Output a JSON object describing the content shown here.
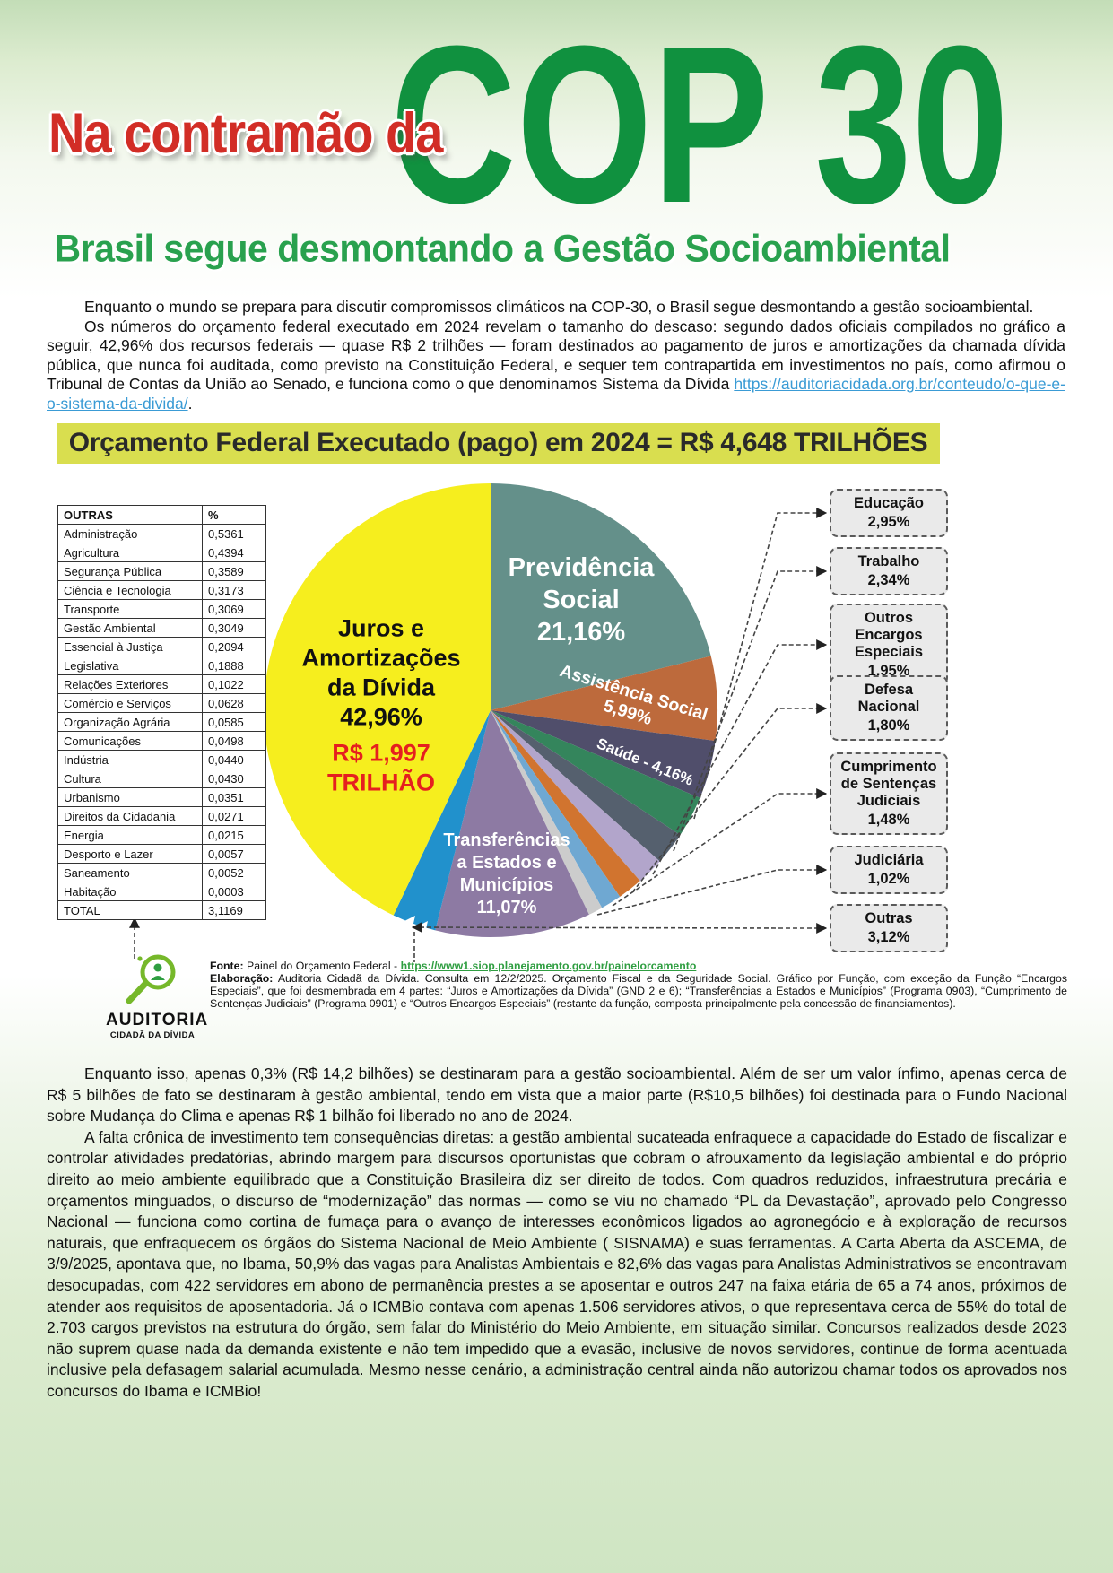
{
  "colors": {
    "title_red": "#d22d26",
    "title_green": "#10913f",
    "subtitle_green": "#29a14e",
    "banner_bg": "#d9de4f",
    "link_blue": "#3a9bd5",
    "link_green": "#2f9e41"
  },
  "header": {
    "title_red": "Na contramão da",
    "title_big": "COP 30",
    "subtitle": "Brasil segue desmontando a Gestão Socioambiental"
  },
  "intro": {
    "p1": "Enquanto o mundo se prepara para discutir compromissos climáticos na COP-30, o Brasil segue desmontando a gestão socioambiental.",
    "p2_text": "Os números do orçamento federal executado em 2024 revelam o tamanho do descaso: segundo dados oficiais compilados no gráfico a seguir, 42,96% dos recursos federais — quase R$ 2 trilhões — foram destinados ao pagamento de juros e amortizações da chamada dívida pública, que nunca foi auditada, como previsto na Constituição Federal, e sequer tem contrapartida em investimentos no país, como afirmou o Tribunal de Contas da União ao Senado, e funciona como o que denominamos Sistema da Dívida ",
    "p2_link": "https://auditoriacidada.org.br/conteudo/o-que-e-o-sistema-da-divida/",
    "p2_end": "."
  },
  "banner": "Orçamento Federal Executado (pago) em 2024 = R$ 4,648 TRILHÕES",
  "chart_data": {
    "type": "pie",
    "title": "Orçamento Federal Executado (pago) em 2024 = R$ 4,648 TRILHÕES",
    "total": "R$ 4,648 TRILHÕES",
    "slices": [
      {
        "id": "previdencia",
        "name": "Previdência Social",
        "value": 21.16,
        "color": "#64908a"
      },
      {
        "id": "assistencia",
        "name": "Assistência Social",
        "value": 5.99,
        "color": "#bd6a3c"
      },
      {
        "id": "saude",
        "name": "Saúde",
        "value": 4.16,
        "color": "#504e6b"
      },
      {
        "id": "educacao",
        "name": "Educação",
        "value": 2.95,
        "color": "#34855c"
      },
      {
        "id": "trabalho",
        "name": "Trabalho",
        "value": 2.34,
        "color": "#55606e"
      },
      {
        "id": "outros-encargos",
        "name": "Outros Encargos Especiais",
        "value": 1.95,
        "color": "#b2a5cb"
      },
      {
        "id": "defesa",
        "name": "Defesa Nacional",
        "value": 1.8,
        "color": "#d1742f"
      },
      {
        "id": "cumprimento",
        "name": "Cumprimento de Sentenças Judiciais",
        "value": 1.48,
        "color": "#6fa8d2"
      },
      {
        "id": "judiciaria",
        "name": "Judiciária",
        "value": 1.02,
        "color": "#cccccc"
      },
      {
        "id": "transferencias",
        "name": "Transferências a Estados e Municípios",
        "value": 11.07,
        "color": "#8d7aa3"
      },
      {
        "id": "outras",
        "name": "Outras",
        "value": 3.12,
        "color": "#2191cc"
      },
      {
        "id": "juros",
        "name": "Juros e Amortizações da Dívida",
        "value": 42.96,
        "color": "#f6ee1e"
      }
    ],
    "labels": {
      "juros_title": "Juros e\nAmortizações\nda Dívida\n42,96%",
      "juros_value": "R$ 1,997\nTRILHÃO",
      "previdencia": "Previdência\nSocial\n21,16%",
      "assistencia": "Assistência Social\n5,99%",
      "saude": "Saúde - 4,16%",
      "transferencias": "Transferências\na Estados e\nMunicípios\n11,07%"
    },
    "callouts": [
      {
        "id": "educacao",
        "title": "Educação",
        "value": "2,95%"
      },
      {
        "id": "trabalho",
        "title": "Trabalho",
        "value": "2,34%"
      },
      {
        "id": "outros-encargos",
        "title": "Outros Encargos Especiais",
        "value": "1,95%"
      },
      {
        "id": "defesa",
        "title": "Defesa Nacional",
        "value": "1,80%"
      },
      {
        "id": "cumprimento",
        "title": "Cumprimento de Sentenças Judiciais",
        "value": "1,48%"
      },
      {
        "id": "judiciaria",
        "title": "Judiciária",
        "value": "1,02%"
      },
      {
        "id": "outras",
        "title": "Outras",
        "value": "3,12%"
      }
    ],
    "table": {
      "headers": [
        "OUTRAS",
        "%"
      ],
      "rows": [
        [
          "Administração",
          "0,5361"
        ],
        [
          "Agricultura",
          "0,4394"
        ],
        [
          "Segurança Pública",
          "0,3589"
        ],
        [
          "Ciência e Tecnologia",
          "0,3173"
        ],
        [
          "Transporte",
          "0,3069"
        ],
        [
          "Gestão Ambiental",
          "0,3049"
        ],
        [
          "Essencial à Justiça",
          "0,2094"
        ],
        [
          "Legislativa",
          "0,1888"
        ],
        [
          "Relações Exteriores",
          "0,1022"
        ],
        [
          "Comércio e Serviços",
          "0,0628"
        ],
        [
          "Organização Agrária",
          "0,0585"
        ],
        [
          "Comunicações",
          "0,0498"
        ],
        [
          "Indústria",
          "0,0440"
        ],
        [
          "Cultura",
          "0,0430"
        ],
        [
          "Urbanismo",
          "0,0351"
        ],
        [
          "Direitos da Cidadania",
          "0,0271"
        ],
        [
          "Energia",
          "0,0215"
        ],
        [
          "Desporto e Lazer",
          "0,0057"
        ],
        [
          "Saneamento",
          "0,0052"
        ],
        [
          "Habitação",
          "0,0003"
        ]
      ],
      "total_label": "TOTAL",
      "total_value": "3,1169"
    }
  },
  "source": {
    "fonte_label": "Fonte:",
    "fonte_text": " Painel do Orçamento Federal - ",
    "fonte_link": "https://www1.siop.planejamento.gov.br/painelorcamento",
    "elaboracao_label": "Elaboração:",
    "elaboracao_text": " Auditoria Cidadã da Dívida. Consulta em 12/2/2025. Orçamento Fiscal e da Seguridade Social. Gráfico por Função, com exceção da Função “Encargos Especiais”, que foi desmembrada em 4 partes: “Juros e Amortizações da Dívida” (GND 2 e 6); “Transferências a Estados e Municípios” (Programa 0903), “Cumprimento de Sentenças Judiciais” (Programa 0901) e “Outros Encargos Especiais” (restante da função, composta principalmente pela concessão de financiamentos).",
    "logo_line1": "AUDITORIA",
    "logo_line2": "CIDADÃ DA DÍVIDA"
  },
  "body": {
    "p1": "Enquanto isso, apenas 0,3% (R$ 14,2 bilhões) se destinaram para a gestão socioambiental. Além de ser um valor ínfimo, apenas cerca de R$ 5 bilhões de fato se destinaram à gestão ambiental, tendo em vista que a maior parte (R$10,5 bilhões) foi destinada para o Fundo Nacional sobre Mudança do Clima e apenas R$ 1 bilhão foi liberado no ano de 2024.",
    "p2": "A falta crônica de investimento tem consequências diretas: a gestão ambiental sucateada enfraquece a capacidade do Estado de fiscalizar e controlar atividades predatórias, abrindo margem para discursos oportunistas  que cobram  o afrouxamento da legislação ambiental e do próprio direito ao meio ambiente equilibrado que a Constituição Brasileira diz ser direito de todos. Com quadros reduzidos, infraestrutura precária e orçamentos minguados, o discurso de “modernização” das normas — como se viu no chamado “PL da Devastação”, aprovado pelo Congresso Nacional — funciona como cortina de fumaça para o avanço de interesses econômicos ligados ao agronegócio e à exploração de recursos naturais, que enfraquecem os órgãos do Sistema Nacional de Meio Ambiente ( SISNAMA) e suas ferramentas. A Carta Aberta da ASCEMA, de 3/9/2025, apontava que, no Ibama, 50,9% das vagas para Analistas Ambientais e 82,6% das vagas para Analistas Administrativos se encontravam desocupadas, com 422 servidores em abono de permanência prestes a se aposentar e outros 247 na faixa etária de 65 a 74 anos, próximos de atender aos requisitos de aposentadoria. Já o ICMBio contava com apenas 1.506 servidores ativos, o que representava cerca de 55% do total de 2.703 cargos previstos na estrutura do órgão, sem falar do Ministério do Meio Ambiente, em situação similar. Concursos realizados desde 2023 não suprem  quase nada da demanda existente e não tem impedido que a evasão, inclusive de novos servidores, continue de forma acentuada inclusive pela defasagem salarial acumulada.  Mesmo nesse cenário, a administração central ainda não autorizou chamar todos os aprovados nos concursos do  Ibama e ICMBio!"
  }
}
